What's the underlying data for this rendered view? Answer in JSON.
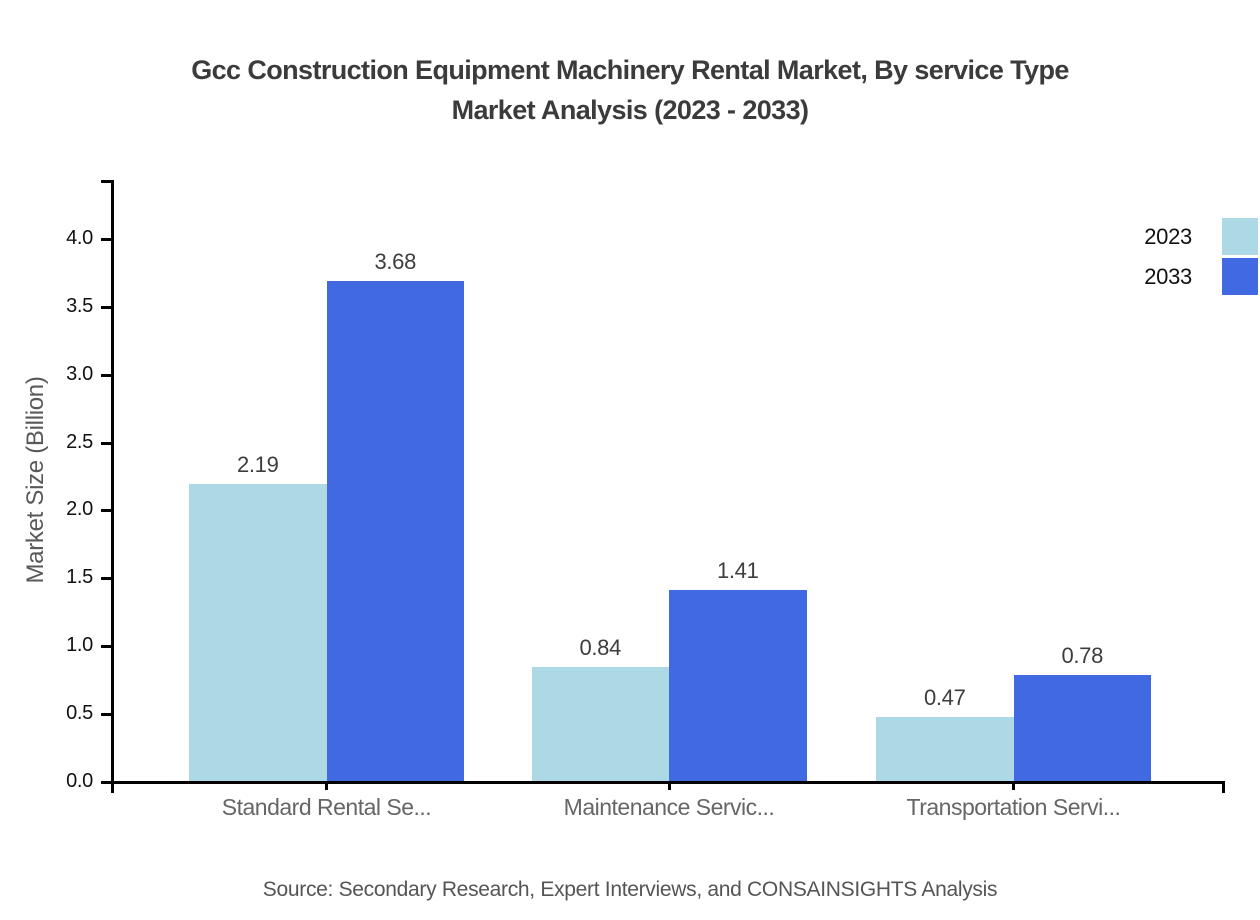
{
  "title_line1": "Gcc Construction Equipment Machinery Rental Market, By service Type",
  "title_line2": "Market Analysis (2023 - 2033)",
  "source_note": "Source: Secondary Research, Expert Interviews, and CONSAINSIGHTS Analysis",
  "chart_data": {
    "type": "bar",
    "title": "Gcc Construction Equipment Machinery Rental Market, By service Type Market Analysis (2023 - 2033)",
    "categories": [
      "Standard Rental Se...",
      "Maintenance Servic...",
      "Transportation Servi..."
    ],
    "series": [
      {
        "name": "2023",
        "color": "#ADD8E6",
        "values": [
          2.19,
          0.84,
          0.47
        ]
      },
      {
        "name": "2033",
        "color": "#4169E1",
        "values": [
          3.68,
          1.41,
          0.78
        ]
      }
    ],
    "xlabel": "",
    "ylabel": "Market Size (Billion)",
    "ylim": [
      0,
      4.43
    ],
    "yticks": [
      0.0,
      0.5,
      1.0,
      1.5,
      2.0,
      2.5,
      3.0,
      3.5,
      4.0
    ],
    "grid": false,
    "legend_position": "top-right",
    "value_labels_shown": true
  }
}
